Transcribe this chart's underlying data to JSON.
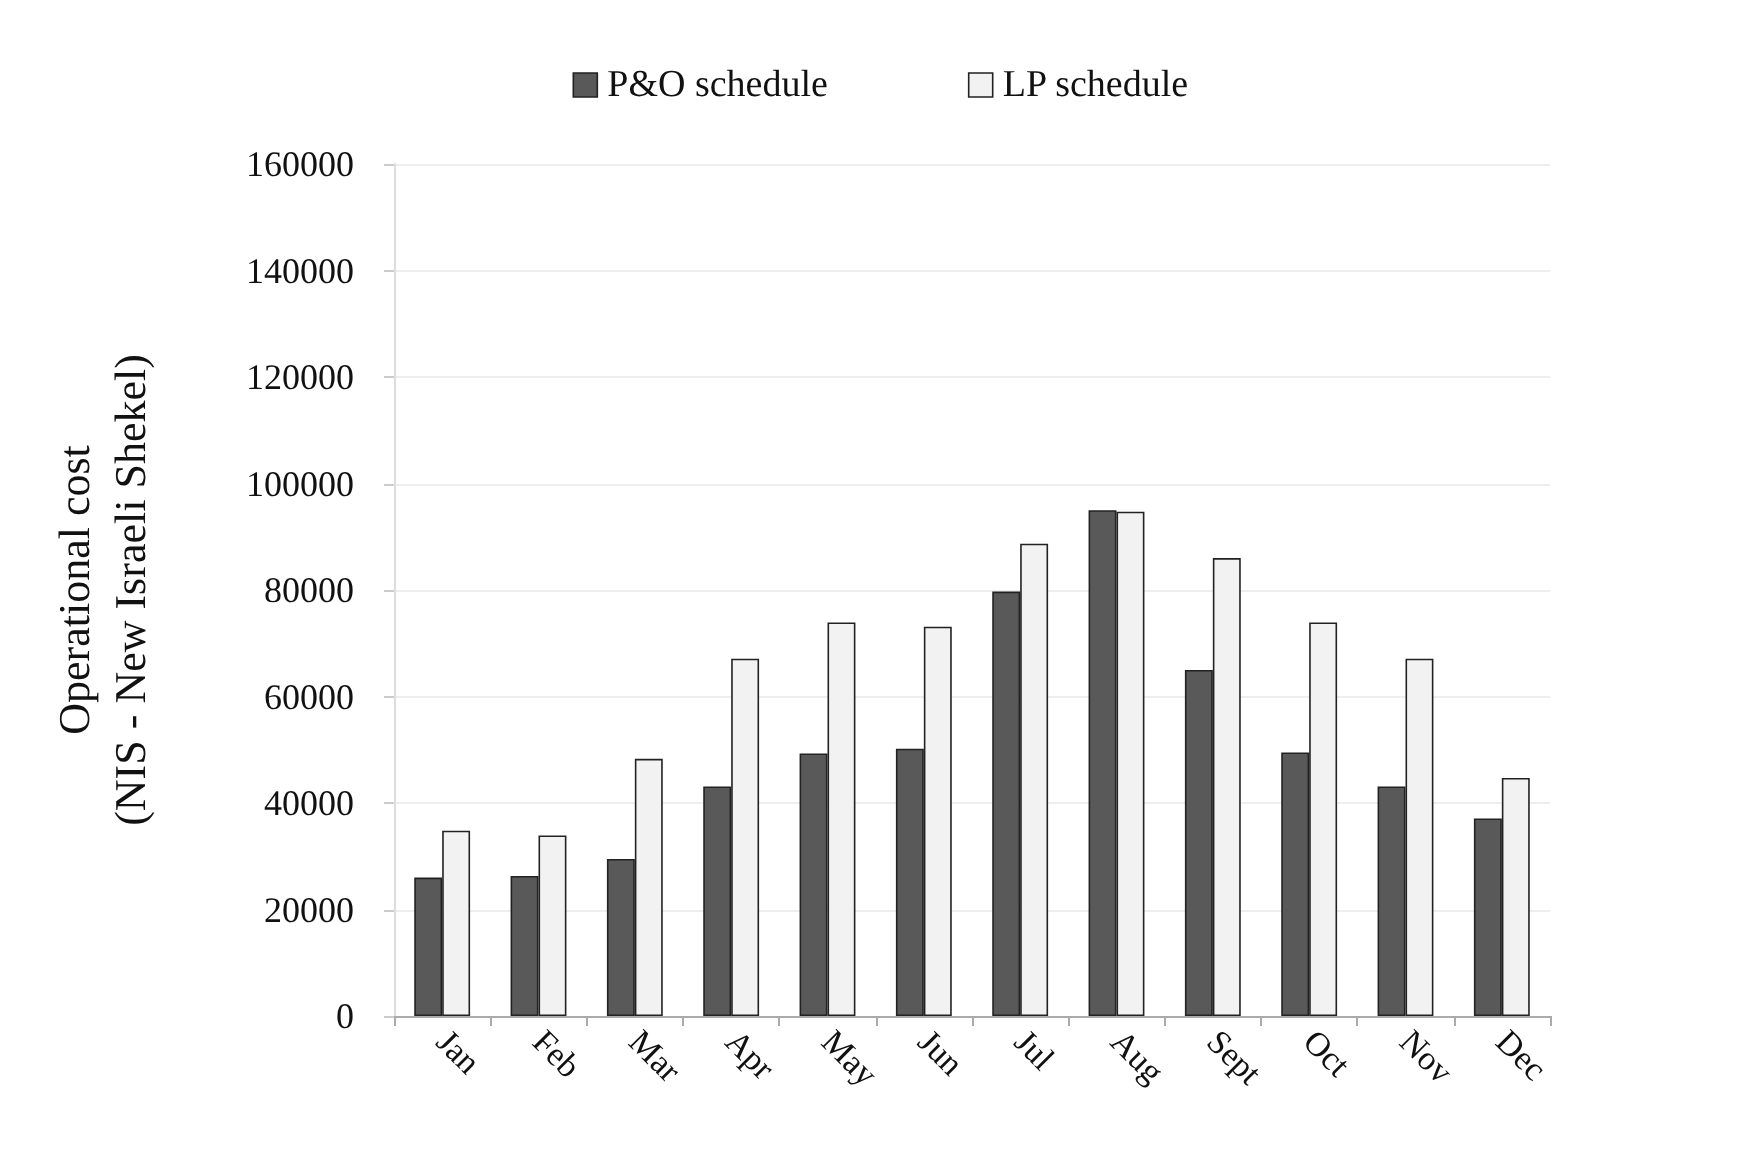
{
  "chart_data": {
    "type": "bar",
    "ylabel": "Operational cost\n(NIS - New Israeli Shekel)",
    "categories": [
      "Jan",
      "Feb",
      "Mar",
      "Apr",
      "May",
      "Jun",
      "Jul",
      "Aug",
      "Sept",
      "Oct",
      "Nov",
      "Dec"
    ],
    "series": [
      {
        "name": "P&O schedule",
        "color": "#595959",
        "values": [
          26000,
          26300,
          29500,
          43100,
          49300,
          50200,
          79700,
          95000,
          65000,
          49500,
          43100,
          37100
        ]
      },
      {
        "name": "LP schedule",
        "color": "#f2f2f2",
        "values": [
          34800,
          33900,
          48300,
          67100,
          73900,
          73100,
          88700,
          94700,
          86000,
          73900,
          67100,
          44700
        ]
      }
    ],
    "ylim": [
      0,
      160000
    ],
    "yticks": [
      0,
      20000,
      40000,
      60000,
      80000,
      100000,
      120000,
      140000,
      160000
    ],
    "grid": "y",
    "legend": "top"
  }
}
